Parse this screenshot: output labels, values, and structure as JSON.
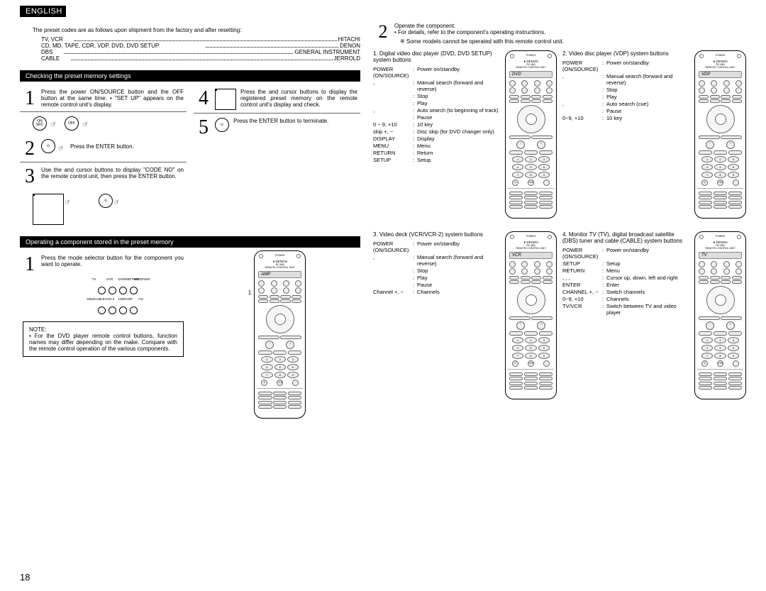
{
  "lang": "ENGLISH",
  "intro": "The preset codes are as follows upon shipment from the factory and after resetting:",
  "codes": [
    {
      "k": "TV, VCR",
      "v": "HITACHI"
    },
    {
      "k": "CD, MD, TAPE, CDR, VDP, DVD, DVD SETUP",
      "v": "DENON"
    },
    {
      "k": "DBS",
      "v": "GENERAL INSTRUMENT"
    },
    {
      "k": "CABLE",
      "v": "JERROLD"
    }
  ],
  "sec1": {
    "title": "Checking the preset memory settings",
    "steps": [
      {
        "n": "1",
        "t": "Press the power ON/SOURCE button and the OFF button at the same time.\n• \"SET UP\" appears on the remote control unit's display."
      },
      {
        "n": "2",
        "t": "Press the ENTER button."
      },
      {
        "n": "3",
        "t": "Use the      and      cursor buttons to display \"CODE NO\" on the remote control unit, then press the ENTER button."
      },
      {
        "n": "4",
        "t": "Press the      and      cursor buttons to display the registered preset memory on the remote control unit's display and check."
      },
      {
        "n": "5",
        "t": "Press the ENTER button to terminate."
      }
    ]
  },
  "sec2": {
    "title": "Operating a component stored in the preset memory",
    "step1": "Press the mode selector button for the component you want to operate.",
    "note_hdr": "NOTE:",
    "note": "• For the DVD player remote control buttons, function names may differ depending on the make. Compare with the remote control operation of the various components.",
    "remote_lead": "1",
    "remote_display": "AMP"
  },
  "r": {
    "step2a": "Operate the component.",
    "step2b": "• For details, refer to the component's operating instructions.",
    "step2c": "※ Some models cannot be operated with this remote control unit.",
    "groups": [
      {
        "title": "1. Digital video disc player (DVD, DVD SETUP) system buttons",
        "display": "DVD",
        "rows": [
          [
            "POWER (ON/SOURCE)",
            "Power on/standby"
          ],
          [
            ",",
            "Manual search (forward and reverse)"
          ],
          [
            "",
            "Stop"
          ],
          [
            "",
            "Play"
          ],
          [
            ",",
            "Auto search (to beginning of track)"
          ],
          [
            "",
            "Pause"
          ],
          [
            "0 ~ 9, +10",
            "10 key"
          ],
          [
            "skip +, −",
            "Disc skip (for DVD changer only)"
          ],
          [
            "DISPLAY",
            "Display"
          ],
          [
            "MENU",
            "Menu"
          ],
          [
            "RETURN",
            "Return"
          ],
          [
            "SETUP",
            "Setup"
          ]
        ]
      },
      {
        "title": "2. Video disc player (VDP) system buttons",
        "display": "VDP",
        "rows": [
          [
            "POWER (ON/SOURCE)",
            "Power on/standby"
          ],
          [
            ",",
            "Manual search (forward and reverse)"
          ],
          [
            "",
            "Stop"
          ],
          [
            "",
            "Play"
          ],
          [
            ",",
            "Auto search (cue)"
          ],
          [
            "",
            "Pause"
          ],
          [
            "0~9, +10",
            "10 key"
          ]
        ]
      },
      {
        "title": "3. Video deck (VCR/VCR-2) system buttons",
        "display": "VCR",
        "rows": [
          [
            "POWER (ON/SOURCE)",
            "Power on/standby"
          ],
          [
            ",",
            "Manual search (forward and reverse)"
          ],
          [
            "",
            "Stop"
          ],
          [
            "",
            "Play"
          ],
          [
            "",
            "Pause"
          ],
          [
            "Channel +, −",
            "Channels"
          ]
        ]
      },
      {
        "title": "4. Monitor TV (TV), digital broadcast satellite (DBS) tuner and cable (CABLE) system buttons",
        "display": "TV",
        "rows": [
          [
            "POWER (ON/SOURCE)",
            "Power on/standby"
          ],
          [
            "SETUP",
            "Setup"
          ],
          [
            "RETURN",
            "Menu"
          ],
          [
            ", , ,",
            "Cursor up, down, left and right"
          ],
          [
            "ENTER",
            "Enter"
          ],
          [
            "CHANNEL +, −",
            "Switch channels"
          ],
          [
            "0~9, +10",
            "Channels"
          ],
          [
            "TV/VCR",
            "Switch between TV and video player"
          ]
        ]
      }
    ]
  },
  "pagenum": "18"
}
